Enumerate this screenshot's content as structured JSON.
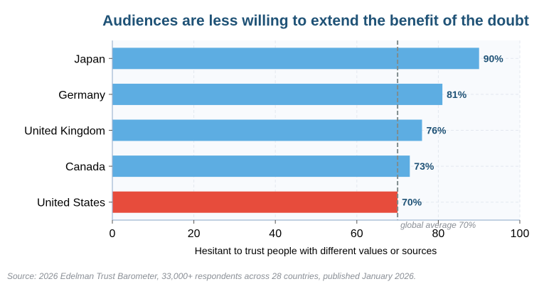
{
  "chart_data": {
    "type": "bar",
    "orientation": "horizontal",
    "title": "Audiences are less willing to extend the benefit of the doubt",
    "xlabel": "Hesitant to trust people with different values or sources",
    "ylabel": "",
    "xlim": [
      0,
      100
    ],
    "xticks": [
      0,
      20,
      40,
      60,
      80,
      100
    ],
    "categories": [
      "Japan",
      "Germany",
      "United Kingdom",
      "Canada",
      "United States"
    ],
    "values": [
      90,
      81,
      76,
      73,
      70
    ],
    "value_labels": [
      "90%",
      "81%",
      "76%",
      "73%",
      "70%"
    ],
    "highlight_category": "United States",
    "reference_line": {
      "value": 70,
      "label": "global average 70%"
    },
    "grid": true,
    "source": "Source: 2026 Edelman Trust Barometer, 33,000+ respondents across 28 countries, published January 2026."
  },
  "colors": {
    "bar": "#5dade2",
    "highlight": "#e74c3c",
    "title": "#1f5276",
    "value_label": "#1f5276",
    "reference_line": "#7f8c8d",
    "plot_background": "#f8fafd",
    "grid": "#e3e8ef",
    "axis": "#9fb6d1"
  }
}
